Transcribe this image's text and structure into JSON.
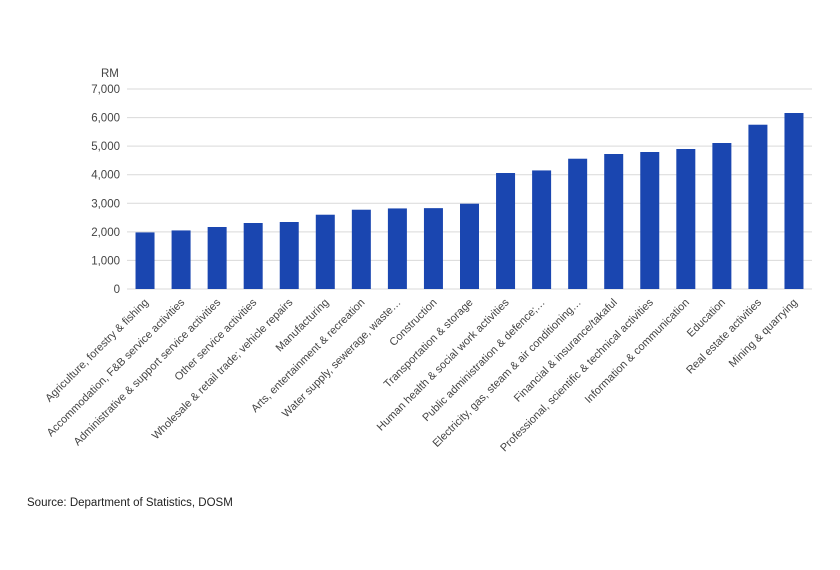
{
  "chart_data": {
    "type": "bar",
    "title": "",
    "xlabel": "",
    "ylabel": "RM",
    "ylim": [
      0,
      7000
    ],
    "yticks": [
      0,
      1000,
      2000,
      3000,
      4000,
      5000,
      6000,
      7000
    ],
    "ytick_labels": [
      "0",
      "1,000",
      "2,000",
      "3,000",
      "4,000",
      "5,000",
      "6,000",
      "7,000"
    ],
    "grid": true,
    "bar_color": "#1a46b0",
    "categories": [
      "Agriculture, forestry & fishing",
      "Accommodation, F&B service activities",
      "Administrative & support service activities",
      "Other service activities",
      "Wholesale & retail trade; vehicle repairs",
      "Manufacturing",
      "Arts, entertainment & recreation",
      "Water supply, sewerage, waste…",
      "Construction",
      "Transportation & storage",
      "Human health & social work activities",
      "Public administration & defence;…",
      "Electricity, gas, steam & air conditioning…",
      "Financial & insurance/takaful",
      "Professional, scientific & technical activities",
      "Information & communication",
      "Education",
      "Real estate activities",
      "Mining & quarrying"
    ],
    "values": [
      1980,
      2050,
      2170,
      2310,
      2345,
      2600,
      2775,
      2820,
      2830,
      2985,
      4060,
      4150,
      4560,
      4725,
      4795,
      4900,
      5110,
      5750,
      6160
    ]
  },
  "source": "Source: Department of Statistics, DOSM"
}
